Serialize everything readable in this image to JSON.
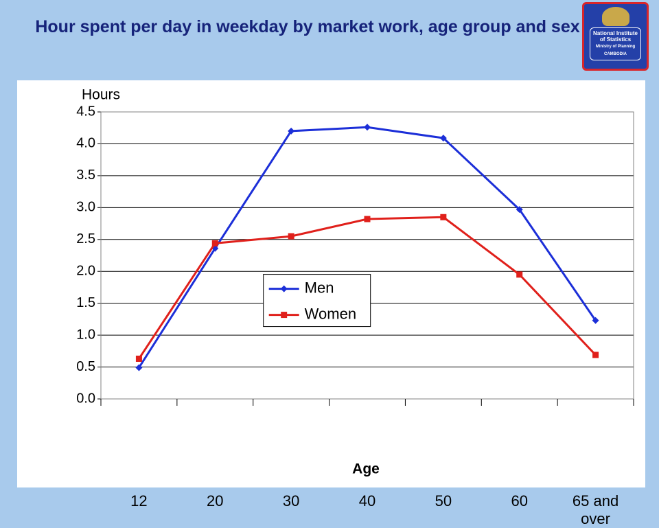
{
  "logo": {
    "name": "National Institute of Statistics",
    "ministry": "Ministry of Planning",
    "country": "CAMBODIA"
  },
  "chart_data": {
    "type": "line",
    "title": "Hour spent per day in weekday by market work, age group and sex",
    "y_label": "Hours",
    "x_label": "Age",
    "categories": [
      "12",
      "20",
      "30",
      "40",
      "50",
      "60",
      "65 and over"
    ],
    "series": [
      {
        "name": "Men",
        "color": "#1c2fd8",
        "marker": "diamond",
        "values": [
          0.49,
          2.36,
          4.2,
          4.26,
          4.09,
          2.97,
          1.23
        ]
      },
      {
        "name": "Women",
        "color": "#e0201b",
        "marker": "square",
        "values": [
          0.63,
          2.44,
          2.55,
          2.82,
          2.85,
          1.95,
          0.69
        ]
      }
    ],
    "ylim": [
      0,
      4.5
    ],
    "yticks": [
      {
        "value": 0,
        "label": "0.0"
      },
      0.5,
      {
        "value": 1,
        "label": "1.0"
      },
      1.5,
      {
        "value": 2,
        "label": "2.0"
      },
      2.5,
      {
        "value": 3,
        "label": "3.0"
      },
      3.5,
      {
        "value": 4,
        "label": "4.0"
      },
      4.5
    ],
    "grid": true,
    "legend_position": "center"
  }
}
